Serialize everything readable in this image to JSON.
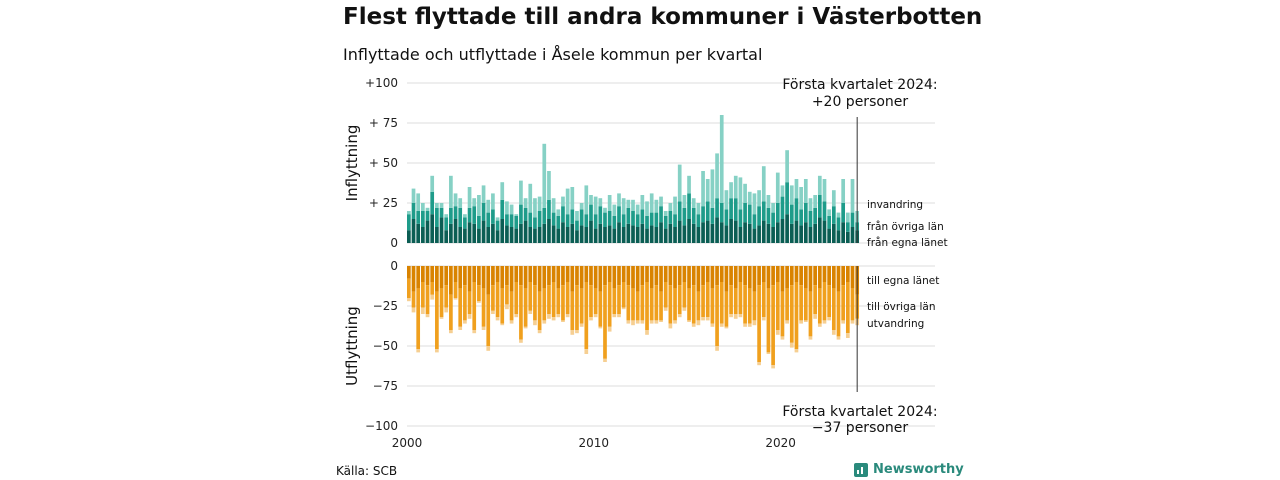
{
  "title": "Flest flyttade till andra kommuner i Västerbotten",
  "subtitle": "Inflyttade och utflyttade i Åsele kommun per kvartal",
  "source": "Källa: SCB",
  "brand": "Newsworthy",
  "chart_data": {
    "type": "bar",
    "stacked": true,
    "first_year": 2000,
    "quarters": 97,
    "inflow": {
      "ylabel": "Inflyttning",
      "ylim": [
        0,
        100
      ],
      "ticks": [
        "0",
        "+ 25",
        "+ 50",
        "+ 75",
        "+100"
      ],
      "annotation": [
        "Första kvartalet 2024:",
        "+20 personer"
      ],
      "series": [
        {
          "name": "från egna länet",
          "color": "#0b5e54",
          "values": [
            8,
            15,
            12,
            10,
            14,
            18,
            10,
            16,
            8,
            12,
            15,
            10,
            9,
            13,
            12,
            9,
            14,
            10,
            12,
            8,
            15,
            11,
            10,
            9,
            12,
            14,
            10,
            9,
            10,
            12,
            15,
            11,
            9,
            13,
            10,
            12,
            8,
            11,
            10,
            14,
            9,
            12,
            10,
            11,
            9,
            13,
            10,
            12,
            11,
            10,
            12,
            9,
            11,
            10,
            13,
            9,
            12,
            10,
            14,
            11,
            15,
            12,
            10,
            13,
            14,
            12,
            16,
            13,
            11,
            15,
            14,
            10,
            13,
            12,
            9,
            11,
            14,
            12,
            10,
            13,
            15,
            18,
            12,
            14,
            11,
            13,
            10,
            12,
            16,
            14,
            9,
            12,
            8,
            13,
            7,
            10,
            8
          ]
        },
        {
          "name": "från övriga län",
          "color": "#1e9c8a",
          "values": [
            10,
            10,
            8,
            10,
            6,
            14,
            12,
            6,
            8,
            10,
            8,
            12,
            7,
            9,
            11,
            8,
            11,
            9,
            9,
            6,
            12,
            7,
            8,
            8,
            12,
            8,
            9,
            7,
            10,
            10,
            12,
            8,
            8,
            10,
            8,
            9,
            6,
            10,
            8,
            10,
            9,
            11,
            9,
            9,
            8,
            10,
            8,
            10,
            9,
            8,
            9,
            8,
            8,
            9,
            10,
            8,
            8,
            8,
            12,
            11,
            16,
            10,
            8,
            10,
            12,
            10,
            12,
            12,
            10,
            13,
            14,
            11,
            12,
            12,
            9,
            12,
            12,
            10,
            9,
            12,
            14,
            20,
            12,
            14,
            10,
            12,
            10,
            10,
            14,
            12,
            8,
            11,
            8,
            12,
            6,
            9,
            5
          ]
        },
        {
          "name": "invandring",
          "color": "#86d1c5",
          "values": [
            2,
            9,
            11,
            5,
            2,
            10,
            3,
            3,
            2,
            20,
            8,
            6,
            2,
            13,
            5,
            13,
            11,
            8,
            10,
            2,
            11,
            8,
            6,
            1,
            15,
            6,
            18,
            12,
            9,
            40,
            18,
            9,
            4,
            6,
            16,
            14,
            6,
            4,
            18,
            6,
            11,
            5,
            3,
            10,
            7,
            8,
            10,
            5,
            7,
            6,
            9,
            9,
            12,
            8,
            6,
            3,
            5,
            11,
            23,
            8,
            11,
            6,
            7,
            22,
            14,
            24,
            28,
            55,
            12,
            10,
            14,
            20,
            12,
            8,
            13,
            10,
            22,
            8,
            6,
            19,
            7,
            20,
            12,
            12,
            14,
            15,
            8,
            8,
            12,
            14,
            4,
            10,
            3,
            15,
            6,
            21,
            7
          ]
        }
      ],
      "labels": [
        "invandring",
        "från övriga län",
        "från egna länet"
      ]
    },
    "outflow": {
      "ylabel": "Utflyttning",
      "ylim": [
        -100,
        0
      ],
      "ticks": [
        "0",
        "−25",
        "−50",
        "−75",
        "−100"
      ],
      "annotation": [
        "Första kvartalet 2024:",
        "−37 personer"
      ],
      "series": [
        {
          "name": "till egna länet",
          "color": "#d98300",
          "values": [
            -8,
            -16,
            -14,
            -10,
            -12,
            -10,
            -16,
            -14,
            -12,
            -18,
            -10,
            -14,
            -12,
            -16,
            -10,
            -12,
            -14,
            -18,
            -12,
            -10,
            -14,
            -12,
            -16,
            -10,
            -12,
            -14,
            -10,
            -12,
            -16,
            -14,
            -12,
            -10,
            -14,
            -12,
            -10,
            -16,
            -12,
            -14,
            -10,
            -12,
            -14,
            -16,
            -12,
            -10,
            -14,
            -12,
            -10,
            -12,
            -14,
            -16,
            -12,
            -10,
            -14,
            -12,
            -16,
            -10,
            -12,
            -14,
            -12,
            -10,
            -14,
            -12,
            -16,
            -12,
            -10,
            -14,
            -12,
            -10,
            -16,
            -12,
            -14,
            -10,
            -12,
            -14,
            -16,
            -12,
            -10,
            -14,
            -12,
            -10,
            -16,
            -14,
            -12,
            -10,
            -12,
            -14,
            -16,
            -12,
            -14,
            -10,
            -12,
            -14,
            -16,
            -12,
            -10,
            -14,
            -18
          ]
        },
        {
          "name": "till övriga län",
          "color": "#f0a01e",
          "values": [
            -12,
            -10,
            -38,
            -16,
            -18,
            -8,
            -36,
            -18,
            -14,
            -22,
            -10,
            -24,
            -22,
            -14,
            -30,
            -10,
            -24,
            -32,
            -16,
            -22,
            -22,
            -12,
            -18,
            -20,
            -34,
            -24,
            -18,
            -22,
            -24,
            -20,
            -18,
            -22,
            -16,
            -22,
            -20,
            -24,
            -28,
            -22,
            -42,
            -20,
            -16,
            -22,
            -46,
            -28,
            -16,
            -18,
            -16,
            -22,
            -20,
            -18,
            -22,
            -30,
            -20,
            -22,
            -18,
            -16,
            -24,
            -20,
            -18,
            -16,
            -20,
            -24,
            -18,
            -20,
            -22,
            -22,
            -38,
            -26,
            -22,
            -18,
            -16,
            -20,
            -24,
            -22,
            -18,
            -48,
            -22,
            -40,
            -50,
            -30,
            -28,
            -20,
            -36,
            -42,
            -22,
            -20,
            -28,
            -18,
            -22,
            -24,
            -20,
            -26,
            -28,
            -22,
            -32,
            -20,
            -15
          ]
        },
        {
          "name": "utvandring",
          "color": "#f6cf92",
          "values": [
            -2,
            -3,
            -2,
            -4,
            -2,
            -3,
            -2,
            -1,
            -3,
            -2,
            -1,
            -2,
            -2,
            -3,
            -2,
            -1,
            -2,
            -3,
            -2,
            -2,
            -1,
            -3,
            -2,
            -2,
            -2,
            -1,
            -2,
            -3,
            -2,
            -2,
            -3,
            -2,
            -2,
            -1,
            -2,
            -3,
            -2,
            -2,
            -3,
            -2,
            -2,
            -1,
            -2,
            -3,
            -2,
            -2,
            -1,
            -2,
            -3,
            -2,
            -2,
            -3,
            -2,
            -2,
            -1,
            -2,
            -3,
            -2,
            -2,
            -2,
            -1,
            -2,
            -3,
            -2,
            -2,
            -2,
            -3,
            -2,
            -1,
            -2,
            -3,
            -2,
            -2,
            -2,
            -3,
            -2,
            -2,
            -1,
            -2,
            -3,
            -2,
            -2,
            -3,
            -2,
            -2,
            -1,
            -2,
            -3,
            -2,
            -2,
            -2,
            -3,
            -2,
            -2,
            -3,
            -2,
            -4
          ]
        }
      ],
      "labels": [
        "till egna länet",
        "till övriga län",
        "utvandring"
      ]
    },
    "xticks": [
      2000,
      2010,
      2020
    ],
    "grid": true
  }
}
